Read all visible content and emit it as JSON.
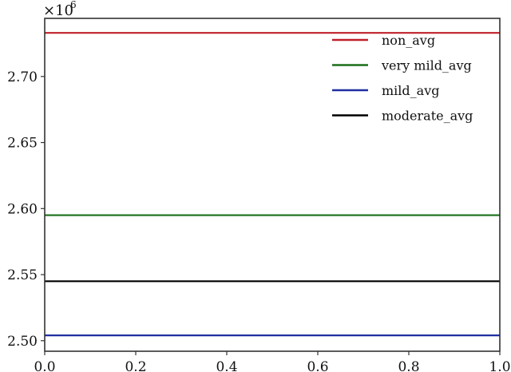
{
  "chart_data": {
    "type": "line",
    "title": "",
    "xlabel": "",
    "ylabel": "",
    "y_multiplier_label": "×10",
    "y_multiplier_exponent": "6",
    "xlim": [
      0.0,
      1.0
    ],
    "ylim": [
      2.492,
      2.744
    ],
    "x_ticks": [
      0.0,
      0.2,
      0.4,
      0.6,
      0.8,
      1.0
    ],
    "x_tick_labels": [
      "0.0",
      "0.2",
      "0.4",
      "0.6",
      "0.8",
      "1.0"
    ],
    "y_ticks": [
      2.5,
      2.55,
      2.6,
      2.65,
      2.7
    ],
    "y_tick_labels": [
      "2.50",
      "2.55",
      "2.60",
      "2.65",
      "2.70"
    ],
    "grid": false,
    "legend_position": "upper right",
    "series": [
      {
        "name": "non_avg",
        "color": "#c0202a",
        "x": [
          0.0,
          1.0
        ],
        "values": [
          2.733,
          2.733
        ]
      },
      {
        "name": "very mild_avg",
        "color": "#1a6e1a",
        "x": [
          0.0,
          1.0
        ],
        "values": [
          2.595,
          2.595
        ]
      },
      {
        "name": "mild_avg",
        "color": "#1f2fa0",
        "x": [
          0.0,
          1.0
        ],
        "values": [
          2.504,
          2.504
        ]
      },
      {
        "name": "moderate_avg",
        "color": "#000000",
        "x": [
          0.0,
          1.0
        ],
        "values": [
          2.545,
          2.545
        ]
      }
    ]
  }
}
